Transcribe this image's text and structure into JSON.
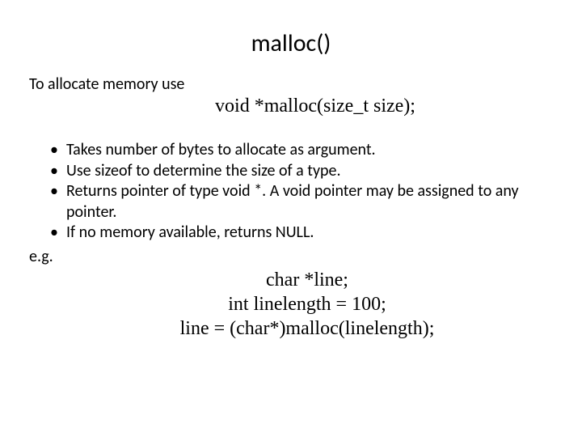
{
  "title": "malloc()",
  "intro": "To allocate memory use",
  "signature": "void *malloc(size_t size);",
  "bullets": [
    "Takes number of bytes to allocate as argument.",
    "Use sizeof to determine the size of a type.",
    "Returns pointer of type void *. A void pointer may be assigned to any pointer.",
    "If no memory available, returns NULL."
  ],
  "eg_label": "e.g.",
  "code_lines": [
    "char *line;",
    "int linelength = 100;",
    "line = (char*)malloc(linelength);"
  ],
  "colors": {
    "background": "#ffffff",
    "text": "#000000"
  },
  "fonts": {
    "body": "Calibri",
    "code": "Times New Roman"
  }
}
